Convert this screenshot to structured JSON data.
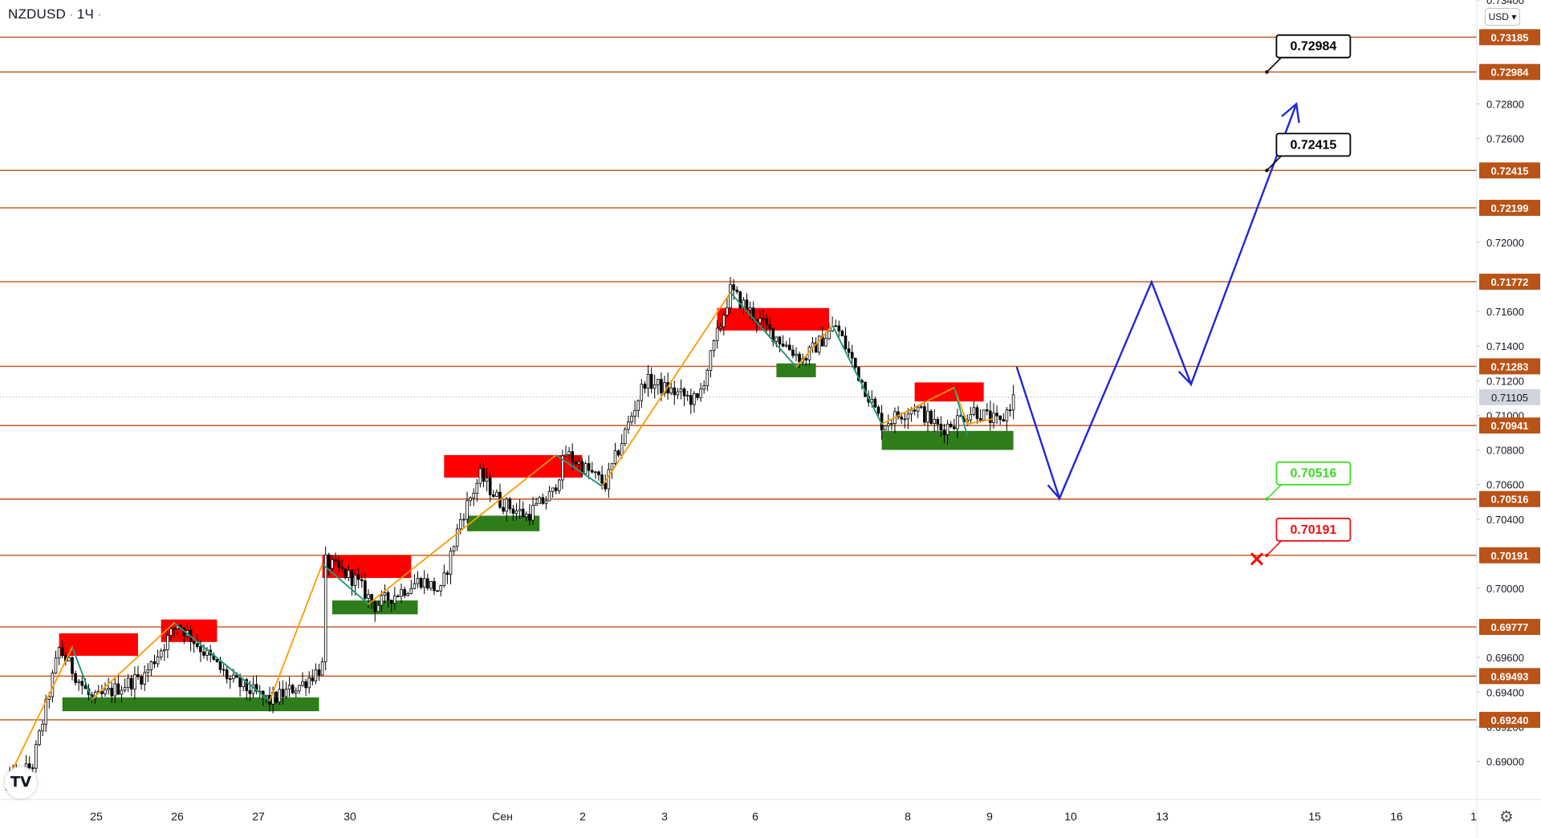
{
  "header": {
    "symbol": "NZDUSD",
    "timeframe": "1Ч",
    "currency_button": "USD"
  },
  "colors": {
    "level_line": "#c0561b",
    "level_label_bg": "#b95318",
    "bull_candle": "#ffffff",
    "bear_candle": "#000000",
    "supply_zone": "#ff0000",
    "demand_zone": "#2e7d1a",
    "zigzag_up": "#ff9900",
    "zigzag_down": "#14998a",
    "forecast_arrow": "#1f28d6",
    "callout_target": "#000000",
    "callout_green": "#3cdc20",
    "callout_red": "#ee1111"
  },
  "chart_data": {
    "type": "candlestick",
    "symbol": "NZDUSD",
    "timeframe": "1Ч",
    "currency": "USD",
    "y_axis_ticks": [
      "0.73400",
      "0.72800",
      "0.72600",
      "0.72000",
      "0.71600",
      "0.71400",
      "0.71200",
      "0.71000",
      "0.70800",
      "0.70600",
      "0.70400",
      "0.70000",
      "0.69600",
      "0.69400",
      "0.69200",
      "0.69000"
    ],
    "ylim": [
      0.6878,
      0.734
    ],
    "current_price": "0.71105",
    "levels": [
      "0.73185",
      "0.72984",
      "0.72415",
      "0.72199",
      "0.71772",
      "0.71283",
      "0.70941",
      "0.70516",
      "0.70191",
      "0.69777",
      "0.69493",
      "0.69240"
    ],
    "x_axis_labels": [
      "25",
      "26",
      "27",
      "30",
      "Сен",
      "2",
      "3",
      "6",
      "8",
      "9",
      "10",
      "13",
      "15",
      "16",
      "1"
    ],
    "price_path_anchors": [
      {
        "bar": 0,
        "price": 0.6887
      },
      {
        "bar": 8,
        "price": 0.6898
      },
      {
        "bar": 16,
        "price": 0.6965
      },
      {
        "bar": 26,
        "price": 0.6935
      },
      {
        "bar": 42,
        "price": 0.695
      },
      {
        "bar": 52,
        "price": 0.698
      },
      {
        "bar": 68,
        "price": 0.6947
      },
      {
        "bar": 80,
        "price": 0.6935
      },
      {
        "bar": 90,
        "price": 0.6945
      },
      {
        "bar": 96,
        "price": 0.6955
      },
      {
        "bar": 97,
        "price": 0.7015
      },
      {
        "bar": 106,
        "price": 0.7005
      },
      {
        "bar": 112,
        "price": 0.699
      },
      {
        "bar": 126,
        "price": 0.7005
      },
      {
        "bar": 132,
        "price": 0.6998
      },
      {
        "bar": 138,
        "price": 0.704
      },
      {
        "bar": 144,
        "price": 0.7065
      },
      {
        "bar": 150,
        "price": 0.705
      },
      {
        "bar": 158,
        "price": 0.7042
      },
      {
        "bar": 166,
        "price": 0.7055
      },
      {
        "bar": 170,
        "price": 0.7078
      },
      {
        "bar": 182,
        "price": 0.706
      },
      {
        "bar": 194,
        "price": 0.712
      },
      {
        "bar": 210,
        "price": 0.7108
      },
      {
        "bar": 220,
        "price": 0.7172
      },
      {
        "bar": 230,
        "price": 0.7152
      },
      {
        "bar": 242,
        "price": 0.7132
      },
      {
        "bar": 252,
        "price": 0.7152
      },
      {
        "bar": 266,
        "price": 0.7095
      },
      {
        "bar": 276,
        "price": 0.7105
      },
      {
        "bar": 284,
        "price": 0.7092
      },
      {
        "bar": 294,
        "price": 0.7103
      },
      {
        "bar": 302,
        "price": 0.7095
      },
      {
        "bar": 306,
        "price": 0.711
      }
    ],
    "supply_zones": [
      {
        "bar_from": 16,
        "bar_to": 40,
        "price_top": 0.6974,
        "price_bottom": 0.6961
      },
      {
        "bar_from": 47,
        "bar_to": 64,
        "price_top": 0.6982,
        "price_bottom": 0.6969
      },
      {
        "bar_from": 96,
        "bar_to": 123,
        "price_top": 0.7019,
        "price_bottom": 0.7006
      },
      {
        "bar_from": 133,
        "bar_to": 175,
        "price_top": 0.7077,
        "price_bottom": 0.7064
      },
      {
        "bar_from": 216,
        "bar_to": 250,
        "price_top": 0.7162,
        "price_bottom": 0.7149
      },
      {
        "bar_from": 276,
        "bar_to": 297,
        "price_top": 0.7119,
        "price_bottom": 0.7108
      }
    ],
    "demand_zones": [
      {
        "bar_from": 17,
        "bar_to": 95,
        "price_top": 0.6937,
        "price_bottom": 0.6929
      },
      {
        "bar_from": 99,
        "bar_to": 125,
        "price_top": 0.6993,
        "price_bottom": 0.6985
      },
      {
        "bar_from": 140,
        "bar_to": 162,
        "price_top": 0.7042,
        "price_bottom": 0.7033
      },
      {
        "bar_from": 234,
        "bar_to": 246,
        "price_top": 0.713,
        "price_bottom": 0.7122
      },
      {
        "bar_from": 266,
        "bar_to": 306,
        "price_top": 0.7091,
        "price_bottom": 0.708
      }
    ],
    "zigzag_up": [
      {
        "bar": 0,
        "price": 0.6888
      },
      {
        "bar": 20,
        "price": 0.6966
      },
      {
        "bar": 26,
        "price": 0.6936
      },
      {
        "bar": 51,
        "price": 0.698
      },
      {
        "bar": 80,
        "price": 0.6935
      },
      {
        "bar": 96,
        "price": 0.7014
      },
      {
        "bar": 110,
        "price": 0.6991
      },
      {
        "bar": 167,
        "price": 0.7077
      },
      {
        "bar": 181,
        "price": 0.7059
      },
      {
        "bar": 220,
        "price": 0.7171
      },
      {
        "bar": 240,
        "price": 0.7128
      },
      {
        "bar": 251,
        "price": 0.7152
      },
      {
        "bar": 266,
        "price": 0.7095
      },
      {
        "bar": 288,
        "price": 0.7116
      },
      {
        "bar": 292,
        "price": 0.7095
      },
      {
        "bar": 300,
        "price": 0.7098
      }
    ],
    "zigzag_down": [
      {
        "bar": 20,
        "price": 0.6966
      },
      {
        "bar": 26,
        "price": 0.6936
      },
      {
        "bar": 51,
        "price": 0.698
      },
      {
        "bar": 80,
        "price": 0.6935
      },
      {
        "bar": 96,
        "price": 0.7014
      },
      {
        "bar": 110,
        "price": 0.6991
      },
      {
        "bar": 167,
        "price": 0.7077
      },
      {
        "bar": 181,
        "price": 0.7059
      },
      {
        "bar": 220,
        "price": 0.7171
      },
      {
        "bar": 240,
        "price": 0.7128
      },
      {
        "bar": 251,
        "price": 0.7152
      },
      {
        "bar": 266,
        "price": 0.7095
      },
      {
        "bar": 288,
        "price": 0.7116
      },
      {
        "bar": 292,
        "price": 0.7088
      }
    ],
    "forecast_path": [
      {
        "bar": 307,
        "price": 0.7128
      },
      {
        "bar": 320,
        "price": 0.7052
      },
      {
        "bar": 348,
        "price": 0.7177
      },
      {
        "bar": 360,
        "price": 0.7118
      },
      {
        "bar": 392,
        "price": 0.728
      }
    ],
    "price_callouts": [
      {
        "label": "0.72984",
        "bar": 384,
        "price": 0.72984,
        "style": "target"
      },
      {
        "label": "0.72415",
        "bar": 384,
        "price": 0.72415,
        "style": "target"
      },
      {
        "label": "0.70516",
        "bar": 384,
        "price": 0.70516,
        "style": "green"
      },
      {
        "label": "0.70191",
        "bar": 384,
        "price": 0.70191,
        "style": "red"
      }
    ],
    "stop_marker": {
      "bar": 380,
      "price": 0.7017
    }
  }
}
